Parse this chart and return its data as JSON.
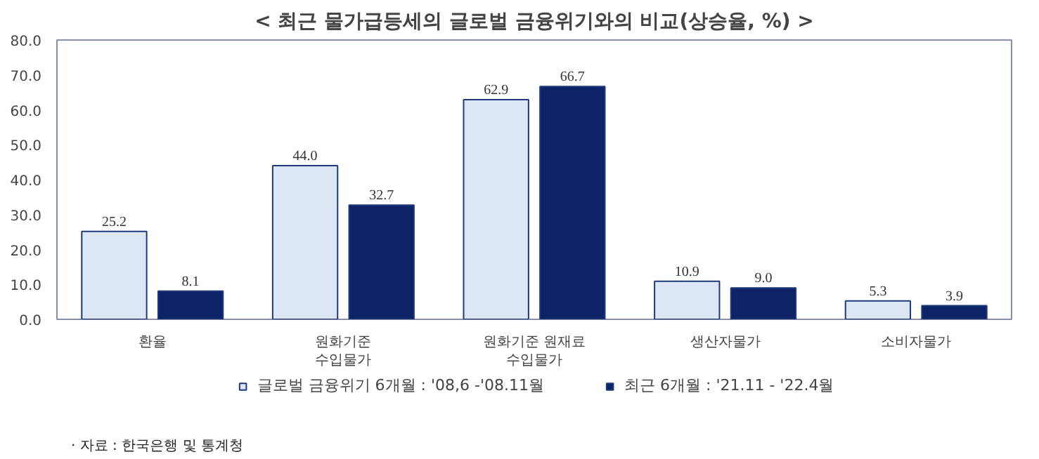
{
  "chart_data": {
    "type": "bar",
    "title": "< 최근 물가급등세의 글로벌 금융위기와의 비교(상승율, %) >",
    "categories": [
      "환율",
      "원화기준\n수입물가",
      "원화기준 원재료\n수입물가",
      "생산자물가",
      "소비자물가"
    ],
    "series": [
      {
        "name": "글로벌 금융위기 6개월 : '08,6 -'08.11월",
        "color": "#dce6f5",
        "values": [
          25.2,
          44.0,
          62.9,
          10.9,
          5.3
        ],
        "value_labels": [
          "25.2",
          "44.0",
          "62.9",
          "10.9",
          "5.3"
        ]
      },
      {
        "name": "최근 6개월 : '21.11 - '22.4월",
        "color": "#0d2366",
        "values": [
          8.1,
          32.7,
          66.7,
          9.0,
          3.9
        ],
        "value_labels": [
          "8.1",
          "32.7",
          "66.7",
          "9.0",
          "3.9"
        ]
      }
    ],
    "ylim": [
      0,
      80
    ],
    "yticks": [
      {
        "value": 0,
        "label": "0.0"
      },
      {
        "value": 10,
        "label": "10.0"
      },
      {
        "value": 20,
        "label": "20.0"
      },
      {
        "value": 30,
        "label": "30.0"
      },
      {
        "value": 40,
        "label": "40.0"
      },
      {
        "value": 50,
        "label": "50.0"
      },
      {
        "value": 60,
        "label": "60.0"
      },
      {
        "value": 70,
        "label": "70.0"
      },
      {
        "value": 80,
        "label": "80.0"
      }
    ],
    "legend": "bottom",
    "grid": false,
    "annotations": [
      "· 자료 : 한국은행 및 통계청"
    ]
  }
}
